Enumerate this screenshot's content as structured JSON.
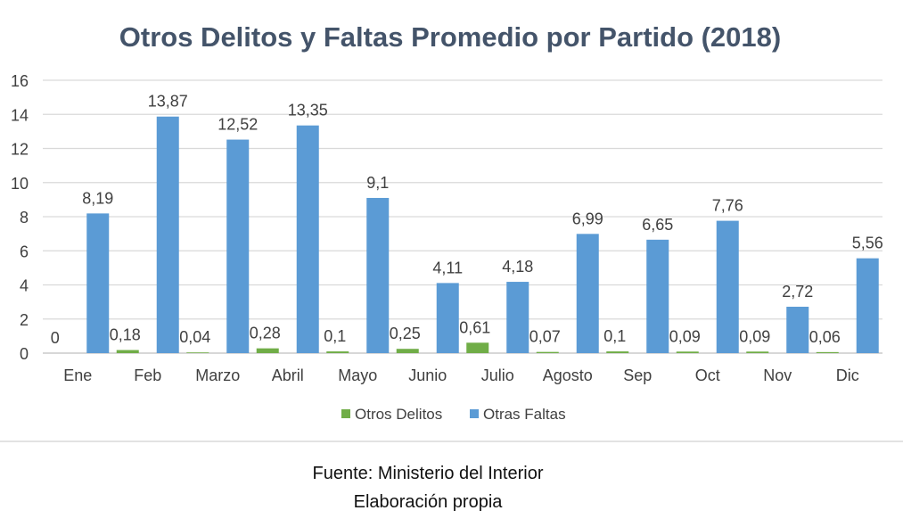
{
  "chart_data": {
    "type": "bar",
    "title": "Otros Delitos y Faltas Promedio por Partido (2018)",
    "categories": [
      "Ene",
      "Feb",
      "Marzo",
      "Abril",
      "Mayo",
      "Junio",
      "Julio",
      "Agosto",
      "Sep",
      "Oct",
      "Nov",
      "Dic"
    ],
    "series": [
      {
        "name": "Otros Delitos",
        "color": "#70ad47",
        "values": [
          0,
          0.18,
          0.04,
          0.28,
          0.1,
          0.25,
          0.61,
          0.07,
          0.1,
          0.09,
          0.09,
          0.06
        ],
        "labels": [
          "0",
          "0,18",
          "0,04",
          "0,28",
          "0,1",
          "0,25",
          "0,61",
          "0,07",
          "0,1",
          "0,09",
          "0,09",
          "0,06"
        ]
      },
      {
        "name": "Otras Faltas",
        "color": "#5b9bd5",
        "values": [
          8.19,
          13.87,
          12.52,
          13.35,
          9.1,
          4.11,
          4.18,
          6.99,
          6.65,
          7.76,
          2.72,
          5.56
        ],
        "labels": [
          "8,19",
          "13,87",
          "12,52",
          "13,35",
          "9,1",
          "4,11",
          "4,18",
          "6,99",
          "6,65",
          "7,76",
          "2,72",
          "5,56"
        ]
      }
    ],
    "ylim": [
      0,
      16
    ],
    "yticks": [
      0,
      2,
      4,
      6,
      8,
      10,
      12,
      14,
      16
    ],
    "grid": true,
    "legend": "bottom",
    "xlabel": "",
    "ylabel": ""
  },
  "source": {
    "line1": "Fuente: Ministerio del Interior",
    "line2": "Elaboración propia"
  }
}
